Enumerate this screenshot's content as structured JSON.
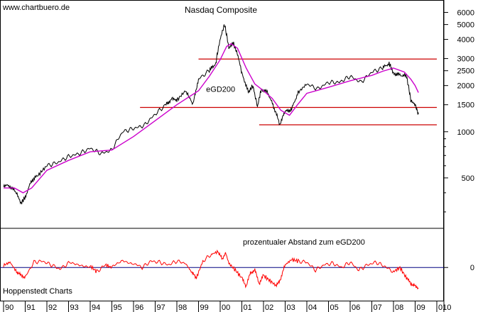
{
  "source_label": "www.chartbuero.de",
  "credit_label": "Hoppenstedt Charts",
  "chart_data": [
    {
      "type": "line",
      "title": "Nasdaq Composite",
      "scale": "log",
      "ylim": [
        250,
        7000
      ],
      "y_ticks": [
        500,
        1000,
        1500,
        2000,
        2500,
        3000,
        4000,
        5000,
        6000
      ],
      "x_ticks": [
        "90",
        "91",
        "92",
        "93",
        "94",
        "95",
        "96",
        "97",
        "98",
        "99",
        "00",
        "01",
        "02",
        "03",
        "04",
        "05",
        "06",
        "07",
        "08",
        "09",
        "010"
      ],
      "x_range": [
        1990.0,
        2010.0
      ],
      "series": [
        {
          "name": "Nasdaq Composite",
          "color": "#000000",
          "x": [
            1990.0,
            1990.3,
            1990.6,
            1990.8,
            1991.0,
            1991.3,
            1991.6,
            1992.0,
            1992.5,
            1993.0,
            1993.5,
            1994.0,
            1994.5,
            1995.0,
            1995.5,
            1996.0,
            1996.5,
            1997.0,
            1997.5,
            1997.8,
            1998.0,
            1998.4,
            1998.75,
            1999.0,
            1999.5,
            1999.8,
            2000.0,
            2000.2,
            2000.4,
            2000.6,
            2000.8,
            2001.0,
            2001.3,
            2001.5,
            2001.72,
            2001.9,
            2002.2,
            2002.5,
            2002.75,
            2003.0,
            2003.3,
            2003.6,
            2004.0,
            2004.5,
            2005.0,
            2005.5,
            2006.0,
            2006.5,
            2007.0,
            2007.5,
            2007.8,
            2008.0,
            2008.3,
            2008.6,
            2008.8,
            2009.0,
            2009.15
          ],
          "y": [
            450,
            440,
            400,
            340,
            375,
            480,
            520,
            600,
            630,
            690,
            720,
            780,
            720,
            760,
            1000,
            1050,
            1100,
            1300,
            1500,
            1650,
            1600,
            1850,
            1500,
            2200,
            2500,
            2800,
            4000,
            5000,
            3500,
            3800,
            3200,
            2400,
            1800,
            2000,
            1450,
            1900,
            1800,
            1400,
            1120,
            1350,
            1400,
            1800,
            2050,
            1900,
            2100,
            2100,
            2300,
            2100,
            2450,
            2600,
            2800,
            2400,
            2350,
            2300,
            1600,
            1500,
            1300
          ]
        },
        {
          "name": "eGD200",
          "color": "#cc00cc",
          "x": [
            1990.0,
            1990.5,
            1990.9,
            1991.3,
            1992.0,
            1993.0,
            1994.0,
            1995.0,
            1996.0,
            1997.0,
            1998.0,
            1999.0,
            1999.5,
            2000.0,
            2000.3,
            2000.5,
            2000.8,
            2001.2,
            2001.6,
            2002.0,
            2002.4,
            2002.8,
            2003.2,
            2003.6,
            2004.0,
            2005.0,
            2006.0,
            2007.0,
            2007.5,
            2008.0,
            2008.5,
            2008.8,
            2009.0,
            2009.15
          ],
          "y": [
            430,
            430,
            400,
            430,
            560,
            650,
            740,
            760,
            930,
            1180,
            1500,
            1850,
            2300,
            2950,
            3600,
            3750,
            3500,
            2600,
            2050,
            1850,
            1650,
            1380,
            1280,
            1520,
            1780,
            1950,
            2150,
            2330,
            2480,
            2600,
            2450,
            2200,
            2000,
            1800
          ]
        }
      ],
      "hlines": [
        {
          "y": 2980,
          "x_start": 1999.0,
          "x_end": 2010.0,
          "color": "#cc0000"
        },
        {
          "y": 1440,
          "x_start": 1996.3,
          "x_end": 2010.0,
          "color": "#cc0000"
        },
        {
          "y": 1110,
          "x_start": 2001.8,
          "x_end": 2010.0,
          "color": "#cc0000"
        }
      ],
      "annotations": [
        {
          "text": "eGD200",
          "x": 1999.35,
          "y": 1820,
          "color": "#cc00cc"
        }
      ]
    },
    {
      "type": "line",
      "title": "prozentualer Abstand zum eGD200",
      "ylim": [
        -60,
        70
      ],
      "y_ticks": [
        0
      ],
      "zero_line_color": "#000080",
      "series": [
        {
          "name": "prozentualer Abstand zum eGD200",
          "color": "#ff0000",
          "x": [
            1990.0,
            1990.3,
            1990.6,
            1990.8,
            1991.0,
            1991.4,
            1991.8,
            1992.2,
            1992.6,
            1993.0,
            1993.5,
            1994.0,
            1994.3,
            1994.7,
            1995.0,
            1995.5,
            1996.0,
            1996.4,
            1996.8,
            1997.2,
            1997.6,
            1998.0,
            1998.4,
            1998.7,
            1998.9,
            1999.2,
            1999.6,
            1999.9,
            2000.1,
            2000.25,
            2000.4,
            2000.7,
            2001.0,
            2001.2,
            2001.4,
            2001.6,
            2001.8,
            2002.0,
            2002.3,
            2002.6,
            2002.8,
            2003.0,
            2003.3,
            2003.6,
            2004.0,
            2004.4,
            2004.8,
            2005.2,
            2005.6,
            2006.0,
            2006.4,
            2006.8,
            2007.2,
            2007.6,
            2008.0,
            2008.3,
            2008.6,
            2008.8,
            2009.0,
            2009.15
          ],
          "y": [
            4,
            10,
            -8,
            -15,
            -18,
            10,
            12,
            5,
            -3,
            8,
            6,
            3,
            -8,
            5,
            0,
            15,
            8,
            0,
            12,
            10,
            5,
            12,
            8,
            -10,
            -20,
            12,
            25,
            30,
            15,
            28,
            8,
            -5,
            -20,
            -35,
            -10,
            -5,
            -30,
            -15,
            -25,
            -35,
            -20,
            5,
            15,
            12,
            10,
            -5,
            5,
            8,
            0,
            10,
            -5,
            5,
            10,
            2,
            -8,
            0,
            -20,
            -30,
            -35,
            -40
          ]
        }
      ]
    }
  ]
}
